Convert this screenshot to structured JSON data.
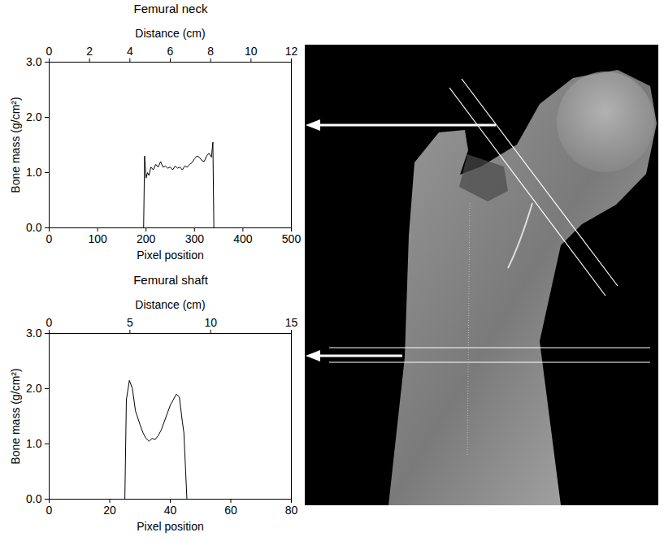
{
  "chart_data": [
    {
      "type": "line",
      "title": "Femural neck",
      "xlabel": "Pixel position",
      "ylabel": "Bone mass (g/cm²)",
      "x2label": "Distance (cm)",
      "x2lim": [
        0,
        12
      ],
      "x2ticks": [
        0,
        2,
        4,
        6,
        8,
        10,
        12
      ],
      "x": [
        195,
        197,
        200,
        203,
        206,
        210,
        215,
        220,
        225,
        230,
        235,
        240,
        245,
        250,
        255,
        260,
        265,
        270,
        275,
        280,
        285,
        290,
        295,
        300,
        305,
        310,
        315,
        320,
        325,
        330,
        335,
        338,
        340
      ],
      "values": [
        0,
        1.3,
        0.9,
        1.0,
        0.95,
        1.1,
        1.05,
        1.15,
        1.1,
        1.2,
        1.1,
        1.12,
        1.08,
        1.1,
        1.05,
        1.12,
        1.08,
        1.1,
        1.05,
        1.12,
        1.1,
        1.15,
        1.18,
        1.25,
        1.3,
        1.28,
        1.22,
        1.2,
        1.3,
        1.35,
        1.28,
        1.55,
        0
      ],
      "color": "#000000",
      "xlim": [
        0,
        500
      ],
      "xticks": [
        0,
        100,
        200,
        300,
        400,
        500
      ],
      "ylim": [
        0,
        3
      ],
      "yticks": [
        0,
        1,
        2,
        3
      ]
    },
    {
      "type": "line",
      "title": "Femural shaft",
      "xlabel": "Pixel position",
      "ylabel": "Bone mass (g/cm²)",
      "x2label": "Distance (cm)",
      "x2lim": [
        0,
        15
      ],
      "x2ticks": [
        0,
        5,
        10,
        15
      ],
      "x": [
        25,
        25.5,
        26.5,
        27.5,
        28.5,
        30,
        31,
        32,
        33,
        34,
        35,
        36,
        37,
        38,
        39,
        40,
        41,
        42,
        43,
        44,
        44.5,
        45.5
      ],
      "values": [
        0,
        1.8,
        2.15,
        2.0,
        1.6,
        1.35,
        1.2,
        1.1,
        1.05,
        1.1,
        1.08,
        1.15,
        1.25,
        1.4,
        1.55,
        1.7,
        1.8,
        1.9,
        1.85,
        1.4,
        1.2,
        0
      ],
      "color": "#000000",
      "xlim": [
        0,
        80
      ],
      "xticks": [
        0,
        20,
        40,
        60,
        80
      ],
      "ylim": [
        0,
        3
      ],
      "yticks": [
        0,
        1,
        2,
        3
      ]
    }
  ]
}
